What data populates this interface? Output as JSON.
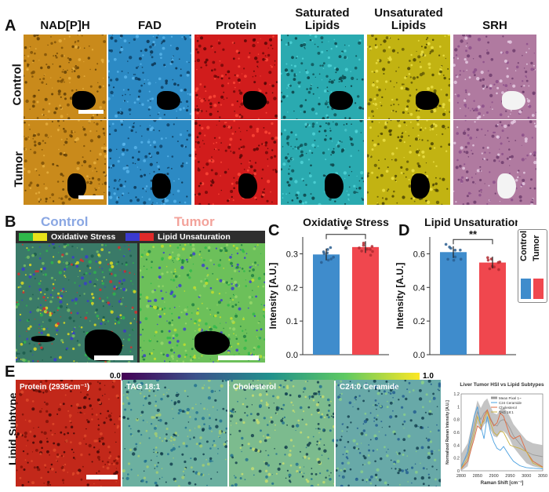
{
  "panel_letters": {
    "a": "A",
    "b": "B",
    "c": "C",
    "d": "D",
    "e": "E"
  },
  "panel_a": {
    "columns": [
      "NAD[P]H",
      "FAD",
      "Protein",
      "Saturated\nLipids",
      "Unsaturated\nLipids",
      "SRH"
    ],
    "rows": [
      "Control",
      "Tumor"
    ],
    "column_colors": [
      "#c98a1b",
      "#2c8ac4",
      "#d11c1c",
      "#2aaab0",
      "#c2b312",
      "#b07aa0"
    ]
  },
  "panel_b": {
    "left_title": "Control",
    "right_title": "Tumor",
    "left_title_color": "#8aa7e3",
    "right_title_color": "#f3a39b",
    "legend_oxidative": "Oxidative Stress",
    "legend_lipid": "Lipid Unsaturation"
  },
  "chart_c": {
    "type": "bar",
    "title": "Oxidative Stress",
    "ylabel": "Intensity [A.U.]",
    "categories": [
      "Control",
      "Tumor"
    ],
    "values": [
      0.298,
      0.32
    ],
    "ylim": [
      0,
      0.35
    ],
    "yticks": [
      "0.0",
      "0.1",
      "0.2",
      "0.3"
    ],
    "significance": "*",
    "colors": [
      "#3f8ccc",
      "#f0474e"
    ]
  },
  "chart_d": {
    "type": "bar",
    "title": "Lipid Unsaturation",
    "ylabel": "Intensity [A.U.]",
    "categories": [
      "Control",
      "Tumor"
    ],
    "values": [
      0.61,
      0.548
    ],
    "ylim": [
      0,
      0.7
    ],
    "yticks": [
      "0.0",
      "0.2",
      "0.4",
      "0.6"
    ],
    "significance": "**",
    "colors": [
      "#3f8ccc",
      "#f0474e"
    ]
  },
  "legend_cd": {
    "items": [
      "Control",
      "Tumor"
    ],
    "colors": [
      "#3f8ccc",
      "#f0474e"
    ]
  },
  "panel_e": {
    "row_label": "Lipid Subtype",
    "colorbar_min": "0.0",
    "colorbar_max": "1.0",
    "tiles": [
      "Protein (2935cm⁻¹)",
      "TAG 18:1",
      "Cholesterol",
      "C24:0 Ceramide"
    ]
  },
  "chart_data": {
    "type": "line",
    "title": "Liver Tumor HSI vs Lipid Subtypes",
    "xlabel": "Raman Shift [cm⁻¹]",
    "ylabel": "Normalized Raman Intensity [A.U.]",
    "xlim": [
      2800,
      3050
    ],
    "ylim": [
      0,
      1.2
    ],
    "xticks": [
      "2800",
      "2850",
      "2900",
      "2950",
      "3000",
      "3050"
    ],
    "yticks": [
      "0",
      "0.2",
      "0.4",
      "0.6",
      "0.8",
      "1",
      "1.2"
    ],
    "legend": [
      "Mean Pixel 1~",
      "C24 Ceramide",
      "Cholesterol",
      "TAG 18:1"
    ],
    "x": [
      2800,
      2820,
      2840,
      2850,
      2860,
      2870,
      2880,
      2890,
      2900,
      2910,
      2920,
      2930,
      2940,
      2950,
      2960,
      2980,
      3000,
      3020,
      3050
    ],
    "series": [
      {
        "name": "Mean Pixel 1~",
        "color": "#9a9a9a",
        "values": [
          0.08,
          0.25,
          0.7,
          0.92,
          0.8,
          0.9,
          0.95,
          0.82,
          0.72,
          0.7,
          0.78,
          0.8,
          0.75,
          0.66,
          0.55,
          0.42,
          0.3,
          0.25,
          0.22
        ],
        "band": 0.18
      },
      {
        "name": "C24 Ceramide",
        "color": "#4aa0e0",
        "values": [
          0.05,
          0.3,
          0.85,
          1.0,
          0.7,
          0.5,
          0.85,
          0.6,
          0.45,
          0.35,
          0.32,
          0.38,
          0.3,
          0.22,
          0.15,
          0.08,
          0.05,
          0.04,
          0.03
        ]
      },
      {
        "name": "Cholesterol",
        "color": "#e06a40",
        "values": [
          0.03,
          0.15,
          0.5,
          0.7,
          0.65,
          0.85,
          0.95,
          0.8,
          0.7,
          0.75,
          0.9,
          0.85,
          0.7,
          0.55,
          0.5,
          0.55,
          0.3,
          0.15,
          0.06
        ]
      },
      {
        "name": "TAG 18:1",
        "color": "#c9b040",
        "values": [
          0.04,
          0.2,
          0.6,
          0.85,
          0.7,
          0.78,
          0.92,
          0.75,
          0.6,
          0.55,
          0.62,
          0.6,
          0.5,
          0.4,
          0.38,
          0.35,
          0.3,
          0.12,
          0.05
        ]
      }
    ]
  }
}
